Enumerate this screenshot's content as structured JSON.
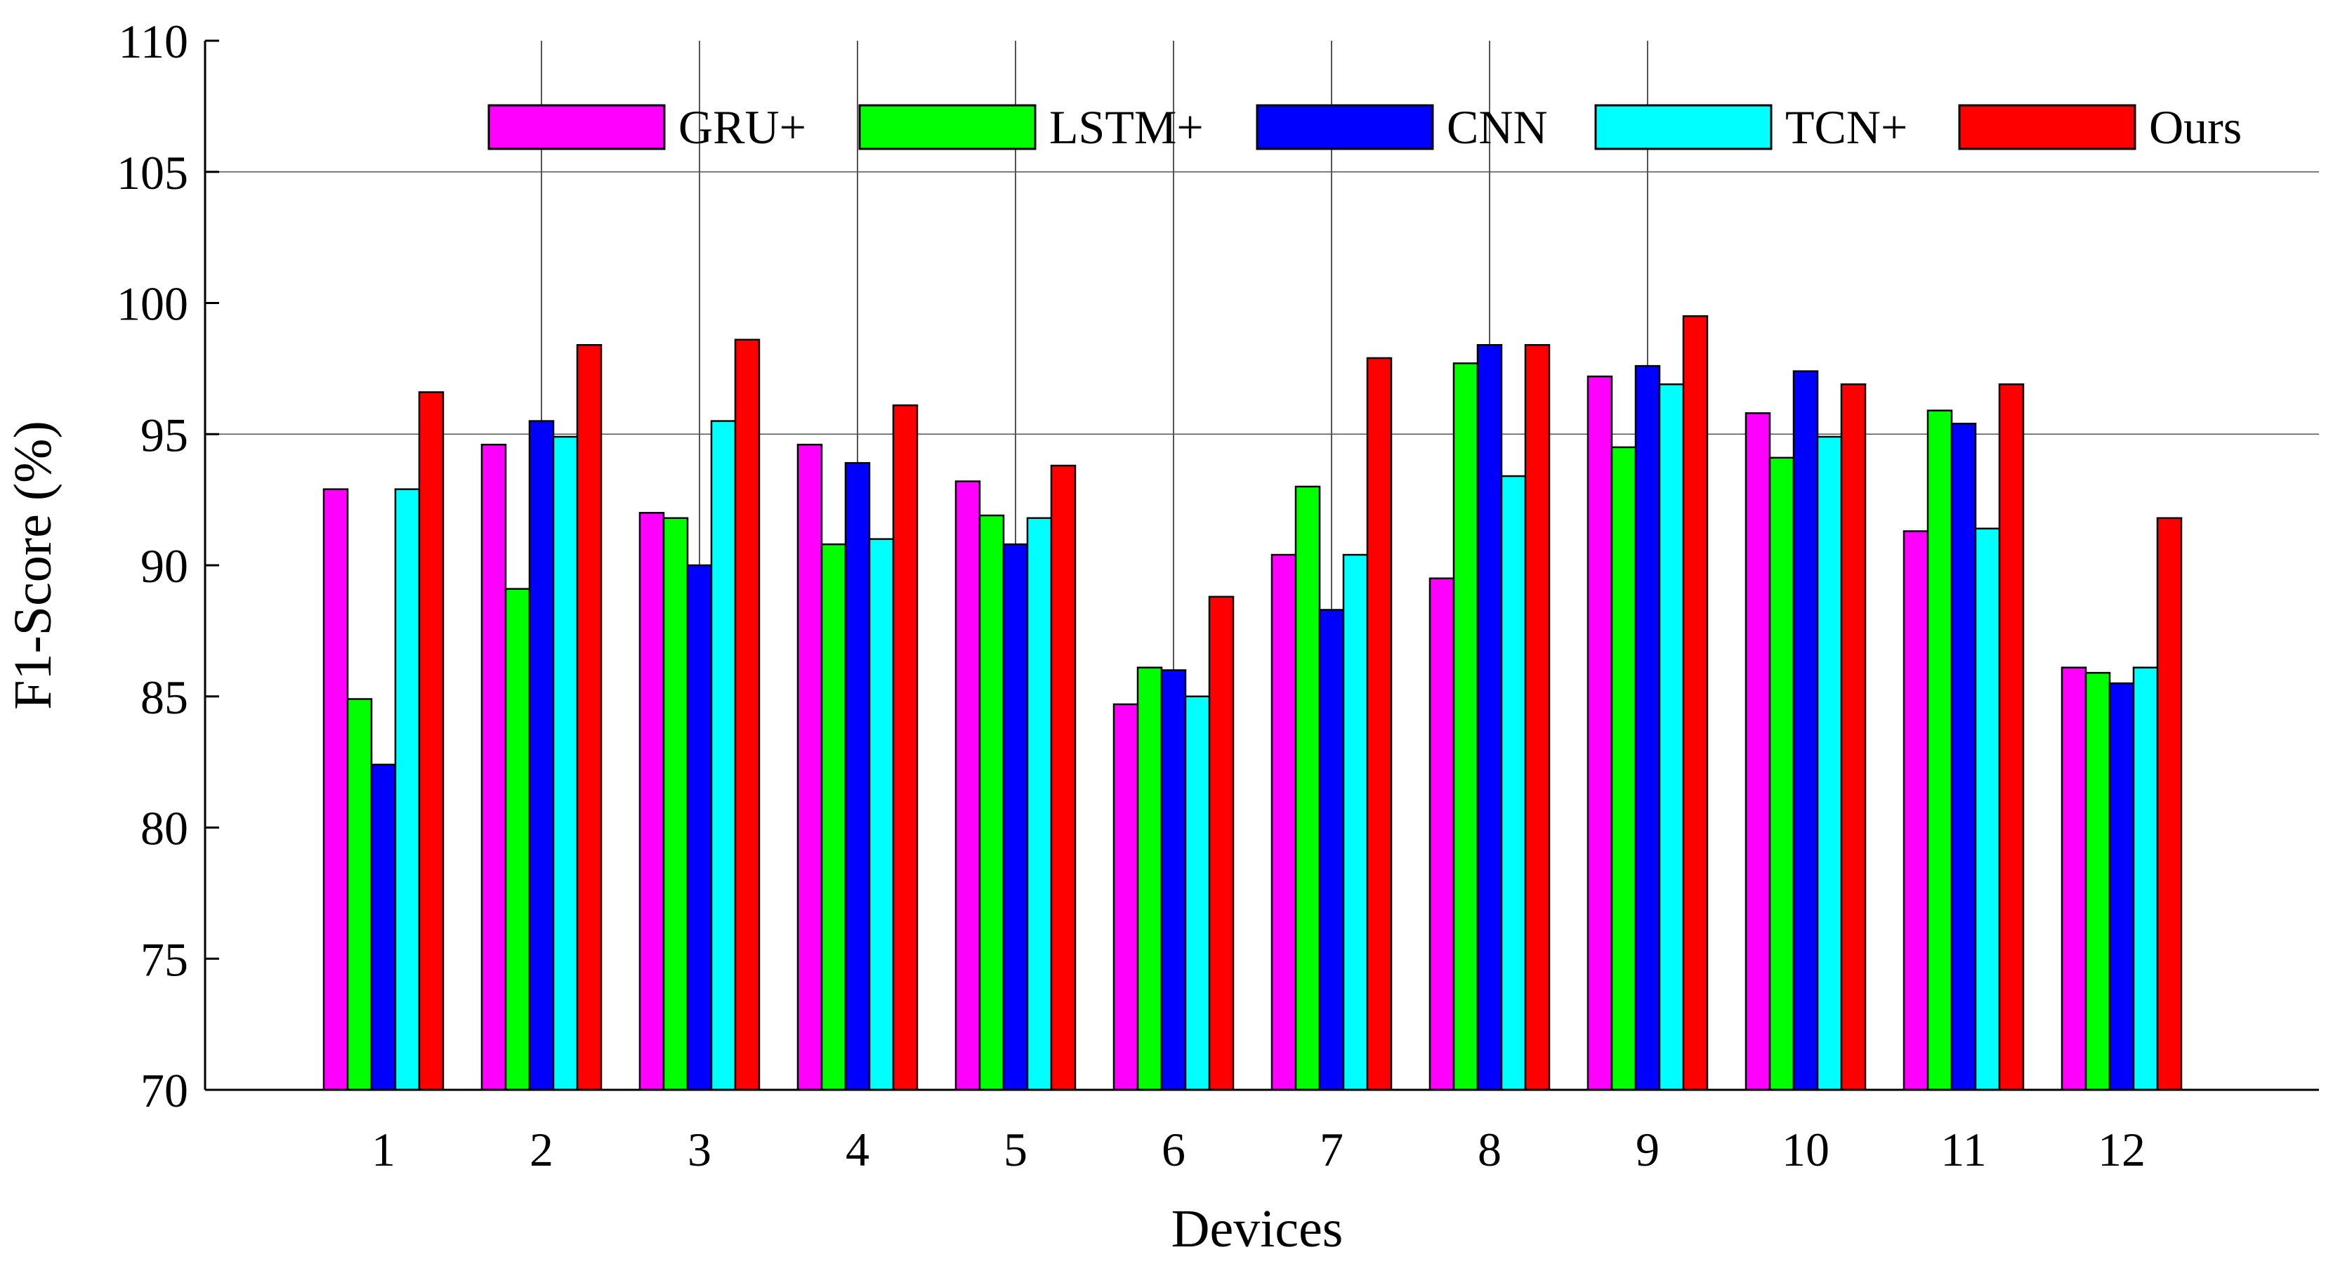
{
  "chart_data": {
    "type": "bar",
    "xlabel": "Devices",
    "ylabel": "F1-Score (%)",
    "ylim": [
      70,
      110
    ],
    "yticks": [
      70,
      75,
      80,
      85,
      90,
      95,
      100,
      105,
      110
    ],
    "categories": [
      "1",
      "2",
      "3",
      "4",
      "5",
      "6",
      "7",
      "8",
      "9",
      "10",
      "11",
      "12"
    ],
    "legend_position": "top",
    "series": [
      {
        "name": "GRU+",
        "color": "#ff00ff",
        "values": [
          92.9,
          94.6,
          92.0,
          94.6,
          93.2,
          84.7,
          90.4,
          89.5,
          97.2,
          95.8,
          91.3,
          86.1
        ]
      },
      {
        "name": "LSTM+",
        "color": "#00ff00",
        "values": [
          84.9,
          89.1,
          91.8,
          90.8,
          91.9,
          86.1,
          93.0,
          97.7,
          94.5,
          94.1,
          95.9,
          85.9
        ]
      },
      {
        "name": "CNN",
        "color": "#0000ff",
        "values": [
          82.4,
          95.5,
          90.0,
          93.9,
          90.8,
          86.0,
          88.3,
          98.4,
          97.6,
          97.4,
          95.4,
          85.5
        ]
      },
      {
        "name": "TCN+",
        "color": "#00ffff",
        "values": [
          92.9,
          94.9,
          95.5,
          91.0,
          91.8,
          85.0,
          90.4,
          93.4,
          96.9,
          94.9,
          91.4,
          86.1
        ]
      },
      {
        "name": "Ours",
        "color": "#ff0000",
        "values": [
          96.6,
          98.4,
          98.6,
          96.1,
          93.8,
          88.8,
          97.9,
          98.4,
          99.5,
          96.9,
          96.9,
          91.8
        ]
      }
    ],
    "grid": {
      "horizontal_at": [
        95,
        105
      ],
      "vertical_at_categories": [
        "2",
        "3",
        "4",
        "5",
        "6",
        "7",
        "8",
        "9"
      ]
    }
  }
}
